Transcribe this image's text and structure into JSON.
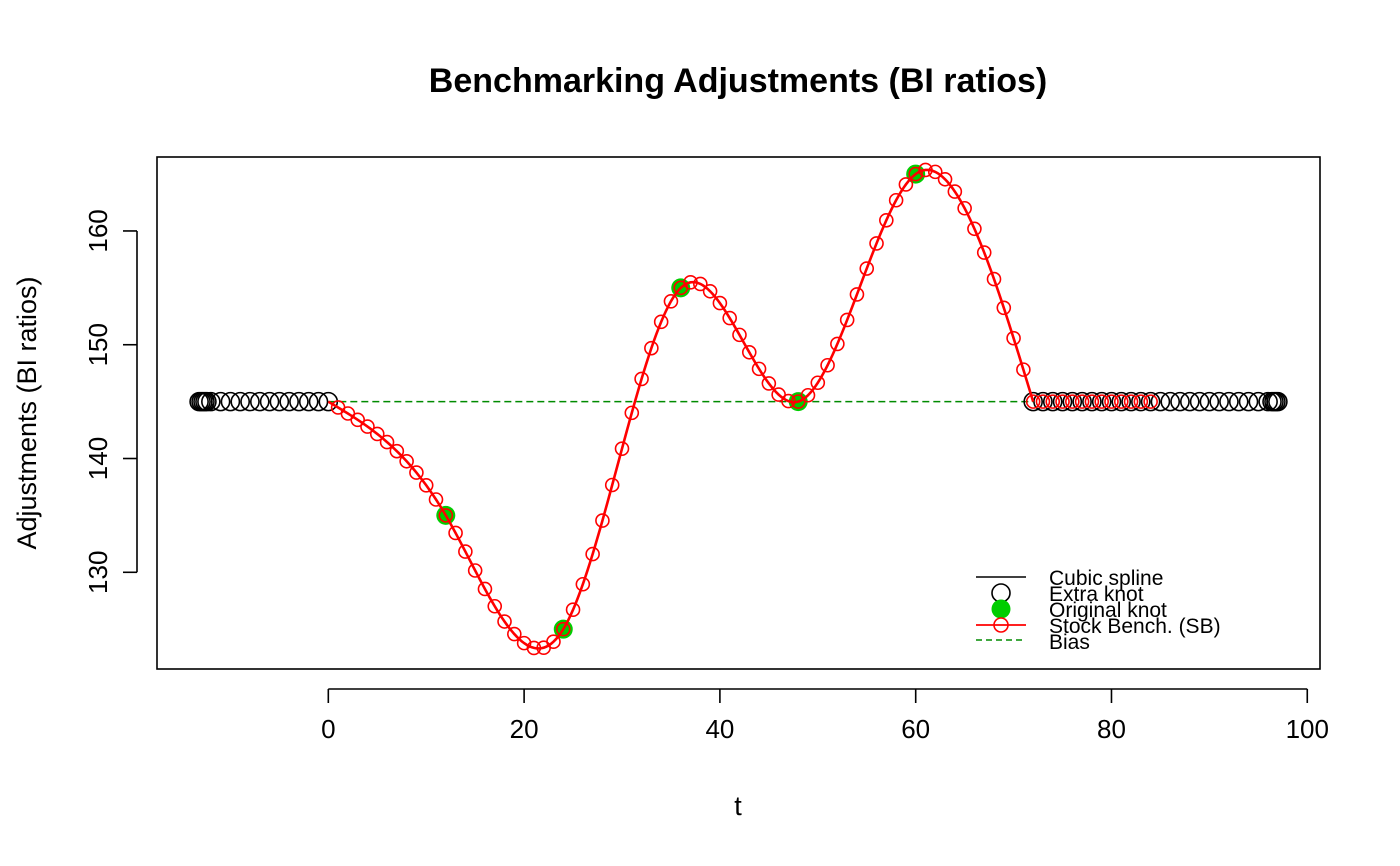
{
  "chart_data": {
    "type": "line",
    "title": "Benchmarking Adjustments (BI ratios)",
    "xlabel": "t",
    "ylabel": "Adjustments (BI ratios)",
    "xlim": [
      -17.5,
      101.3
    ],
    "ylim": [
      121.5,
      166.5
    ],
    "x_ticks": [
      0,
      20,
      40,
      60,
      80,
      100
    ],
    "y_ticks": [
      130,
      140,
      150,
      160
    ],
    "bias": 145,
    "original_knots": {
      "name": "Original knot",
      "x": [
        12,
        24,
        36,
        48,
        60
      ],
      "y": [
        135,
        125,
        155,
        145,
        165
      ]
    },
    "extra_knots_left": {
      "x": [
        -13.2,
        -13,
        -12.8,
        -12.6,
        -12.4,
        -12,
        -11,
        -10,
        -9,
        -8,
        -7,
        -6,
        -5,
        -4,
        -3,
        -2,
        -1,
        0
      ],
      "y": 145
    },
    "extra_knots_right": {
      "x": [
        72,
        73,
        74,
        75,
        76,
        77,
        78,
        79,
        80,
        81,
        82,
        83,
        84,
        85,
        86,
        87,
        88,
        89,
        90,
        91,
        92,
        93,
        94,
        95,
        96,
        96.4,
        96.6,
        96.8,
        97
      ],
      "y": 145
    },
    "legend": {
      "position": "bottom-right",
      "items": [
        {
          "label": "Cubic spline",
          "style": "line",
          "color": "#000000"
        },
        {
          "label": "Extra knot",
          "style": "open-circle",
          "color": "#000000"
        },
        {
          "label": "Original knot",
          "style": "filled-circle",
          "color": "#00CD00"
        },
        {
          "label": "Stock Bench. (SB)",
          "style": "line-circle",
          "color": "#FF0000"
        },
        {
          "label": "Bias",
          "style": "dashed",
          "color": "#008B00"
        }
      ]
    },
    "colors": {
      "spline": "#000000",
      "stock": "#FF0000",
      "original_knot": "#00CD00",
      "bias": "#008B00"
    }
  }
}
